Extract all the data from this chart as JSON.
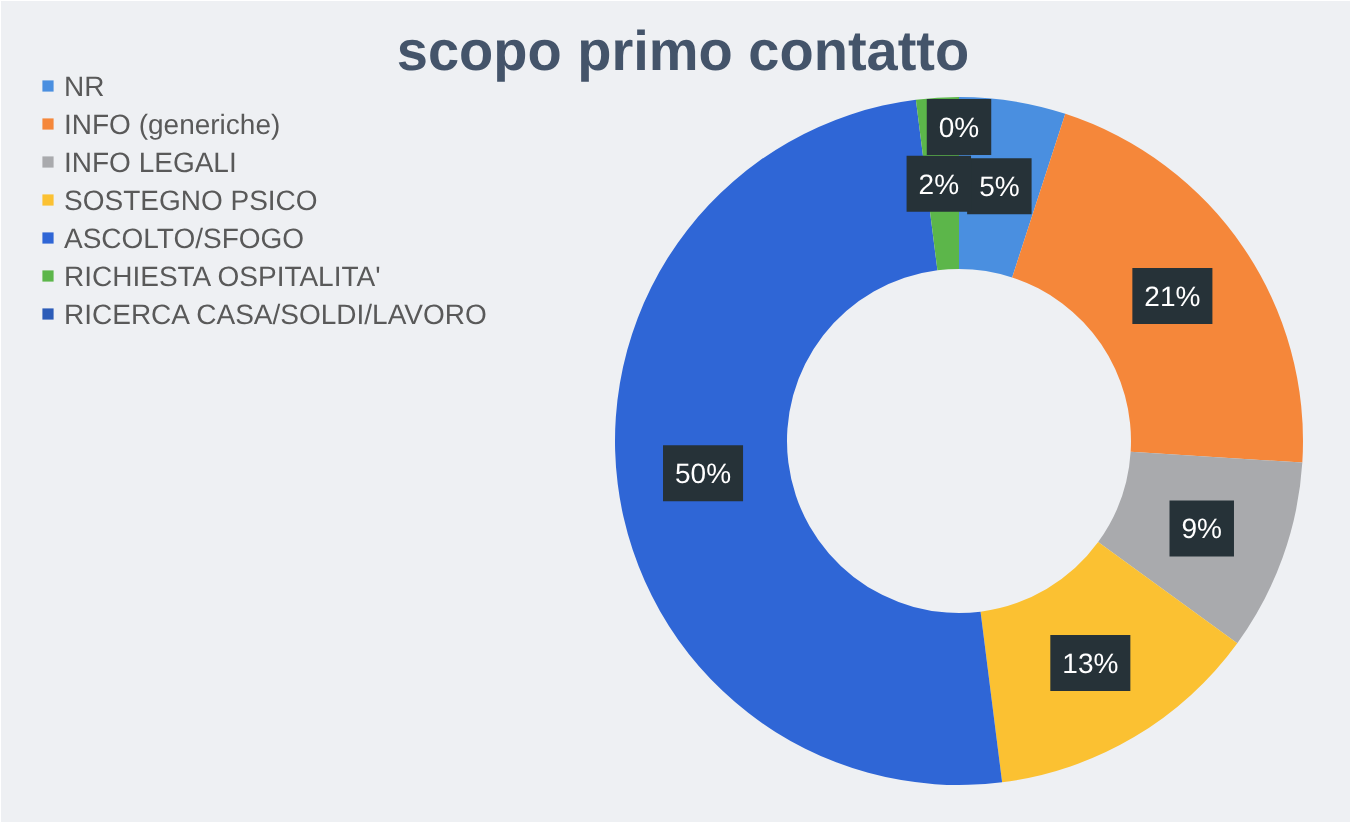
{
  "chart_data": {
    "type": "donut",
    "title": "scopo primo contatto",
    "categories": [
      "NR",
      "INFO (generiche)",
      "INFO LEGALI",
      "SOSTEGNO PSICO",
      "ASCOLTO/SFOGO",
      "RICHIESTA OSPITALITA'",
      "RICERCA CASA/SOLDI/LAVORO"
    ],
    "values": [
      5,
      21,
      9,
      13,
      50,
      2,
      0
    ],
    "colors": [
      "#4a8fe0",
      "#f5873a",
      "#a9aaad",
      "#fbc132",
      "#2f66d6",
      "#5cb64a",
      "#2c5cb8"
    ],
    "value_labels": [
      "5%",
      "21%",
      "9%",
      "13%",
      "50%",
      "2%",
      "0%"
    ],
    "legend": "top left"
  }
}
